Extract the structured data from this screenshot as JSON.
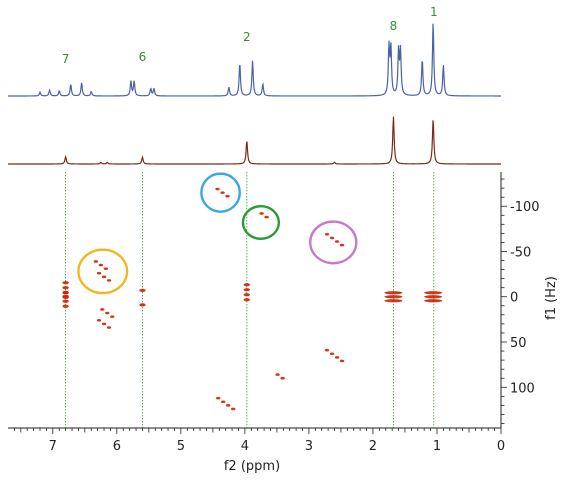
{
  "chart_data": {
    "type": "2D NMR spectrum",
    "xlabel": "f2 (ppm)",
    "ylabel": "f1 (Hz)",
    "x_ticks": [
      7,
      6,
      5,
      4,
      3,
      2,
      1,
      0
    ],
    "y_ticks": [
      -100,
      -50,
      0,
      50,
      100
    ],
    "xlim": [
      7.7,
      0
    ],
    "ylim": [
      -140,
      145
    ],
    "colors": {
      "spectrum_top": "#4a62a8",
      "spectrum_bottom": "#7a2a1a",
      "cross_peaks": "#cc2200",
      "guides": "#3a9a3a",
      "axis": "#222222"
    },
    "peak_labels": [
      {
        "label": "7",
        "ppm": 6.8
      },
      {
        "label": "6",
        "ppm": 5.6
      },
      {
        "label": "2",
        "ppm": 3.97
      },
      {
        "label": "8",
        "ppm": 1.68
      },
      {
        "label": "1",
        "ppm": 1.05
      }
    ],
    "guide_lines_ppm": [
      6.8,
      5.6,
      3.97,
      1.68,
      1.05
    ],
    "spectrum_top_peaks": [
      {
        "ppm": 7.2,
        "height": 0.05
      },
      {
        "ppm": 7.05,
        "height": 0.08
      },
      {
        "ppm": 6.9,
        "height": 0.07
      },
      {
        "ppm": 6.72,
        "height": 0.16
      },
      {
        "ppm": 6.55,
        "height": 0.18
      },
      {
        "ppm": 6.4,
        "height": 0.06
      },
      {
        "ppm": 5.78,
        "height": 0.2
      },
      {
        "ppm": 5.73,
        "height": 0.2
      },
      {
        "ppm": 5.47,
        "height": 0.1
      },
      {
        "ppm": 5.42,
        "height": 0.1
      },
      {
        "ppm": 4.25,
        "height": 0.12
      },
      {
        "ppm": 4.08,
        "height": 0.45
      },
      {
        "ppm": 3.88,
        "height": 0.48
      },
      {
        "ppm": 3.72,
        "height": 0.16
      },
      {
        "ppm": 1.75,
        "height": 0.65
      },
      {
        "ppm": 1.72,
        "height": 0.65
      },
      {
        "ppm": 1.6,
        "height": 0.6
      },
      {
        "ppm": 1.57,
        "height": 0.6
      },
      {
        "ppm": 1.23,
        "height": 0.5
      },
      {
        "ppm": 1.06,
        "height": 1.0
      },
      {
        "ppm": 0.9,
        "height": 0.42
      }
    ],
    "spectrum_bottom_peaks": [
      {
        "ppm": 6.8,
        "height": 0.13
      },
      {
        "ppm": 6.25,
        "height": 0.03
      },
      {
        "ppm": 6.15,
        "height": 0.03
      },
      {
        "ppm": 5.6,
        "height": 0.12
      },
      {
        "ppm": 3.97,
        "height": 0.42
      },
      {
        "ppm": 2.6,
        "height": 0.03
      },
      {
        "ppm": 1.68,
        "height": 0.85
      },
      {
        "ppm": 1.06,
        "height": 0.8
      }
    ],
    "cross_peaks": [
      {
        "ppm": 6.8,
        "hz": -10,
        "n": 3,
        "axis": "v"
      },
      {
        "ppm": 6.8,
        "hz": 5,
        "n": 3,
        "axis": "v"
      },
      {
        "ppm": 6.8,
        "hz": -2,
        "n": 2,
        "axis": "v"
      },
      {
        "ppm": 6.25,
        "hz": -35,
        "n": 3,
        "axis": "d"
      },
      {
        "ppm": 6.2,
        "hz": -22,
        "n": 3,
        "axis": "d"
      },
      {
        "ppm": 6.15,
        "hz": 18,
        "n": 3,
        "axis": "d"
      },
      {
        "ppm": 6.2,
        "hz": 30,
        "n": 3,
        "axis": "d"
      },
      {
        "ppm": 5.6,
        "hz": -7,
        "n": 1,
        "axis": "v"
      },
      {
        "ppm": 5.6,
        "hz": 9,
        "n": 1,
        "axis": "v"
      },
      {
        "ppm": 3.97,
        "hz": -5,
        "n": 4,
        "axis": "v"
      },
      {
        "ppm": 4.35,
        "hz": -115,
        "n": 3,
        "axis": "d"
      },
      {
        "ppm": 3.7,
        "hz": -90,
        "n": 2,
        "axis": "d"
      },
      {
        "ppm": 2.6,
        "hz": -63,
        "n": 4,
        "axis": "d"
      },
      {
        "ppm": 2.6,
        "hz": 65,
        "n": 4,
        "axis": "d"
      },
      {
        "ppm": 1.68,
        "hz": 0,
        "n": 3,
        "axis": "h"
      },
      {
        "ppm": 1.06,
        "hz": 0,
        "n": 3,
        "axis": "h"
      },
      {
        "ppm": 3.45,
        "hz": 88,
        "n": 2,
        "axis": "d"
      },
      {
        "ppm": 4.3,
        "hz": 118,
        "n": 4,
        "axis": "d"
      }
    ],
    "circles": [
      {
        "ppm": 6.22,
        "hz": -28,
        "rppm": 0.38,
        "rhz": 24,
        "color": "#f0b820"
      },
      {
        "ppm": 4.38,
        "hz": -115,
        "rppm": 0.3,
        "rhz": 21,
        "color": "#3aa8d8"
      },
      {
        "ppm": 3.75,
        "hz": -82,
        "rppm": 0.28,
        "rhz": 18,
        "color": "#2a9a3a"
      },
      {
        "ppm": 2.62,
        "hz": -60,
        "rppm": 0.36,
        "rhz": 23,
        "color": "#c87ac8"
      }
    ]
  }
}
